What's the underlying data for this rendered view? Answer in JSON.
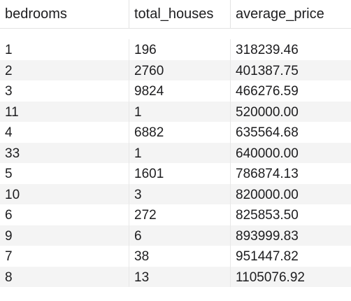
{
  "table": {
    "columns": [
      "bedrooms",
      "total_houses",
      "average_price"
    ],
    "rows": [
      [
        "1",
        "196",
        "318239.46"
      ],
      [
        "2",
        "2760",
        "401387.75"
      ],
      [
        "3",
        "9824",
        "466276.59"
      ],
      [
        "11",
        "1",
        "520000.00"
      ],
      [
        "4",
        "6882",
        "635564.68"
      ],
      [
        "33",
        "1",
        "640000.00"
      ],
      [
        "5",
        "1601",
        "786874.13"
      ],
      [
        "10",
        "3",
        "820000.00"
      ],
      [
        "6",
        "272",
        "825853.50"
      ],
      [
        "9",
        "6",
        "893999.83"
      ],
      [
        "7",
        "38",
        "951447.82"
      ],
      [
        "8",
        "13",
        "1105076.92"
      ]
    ]
  }
}
